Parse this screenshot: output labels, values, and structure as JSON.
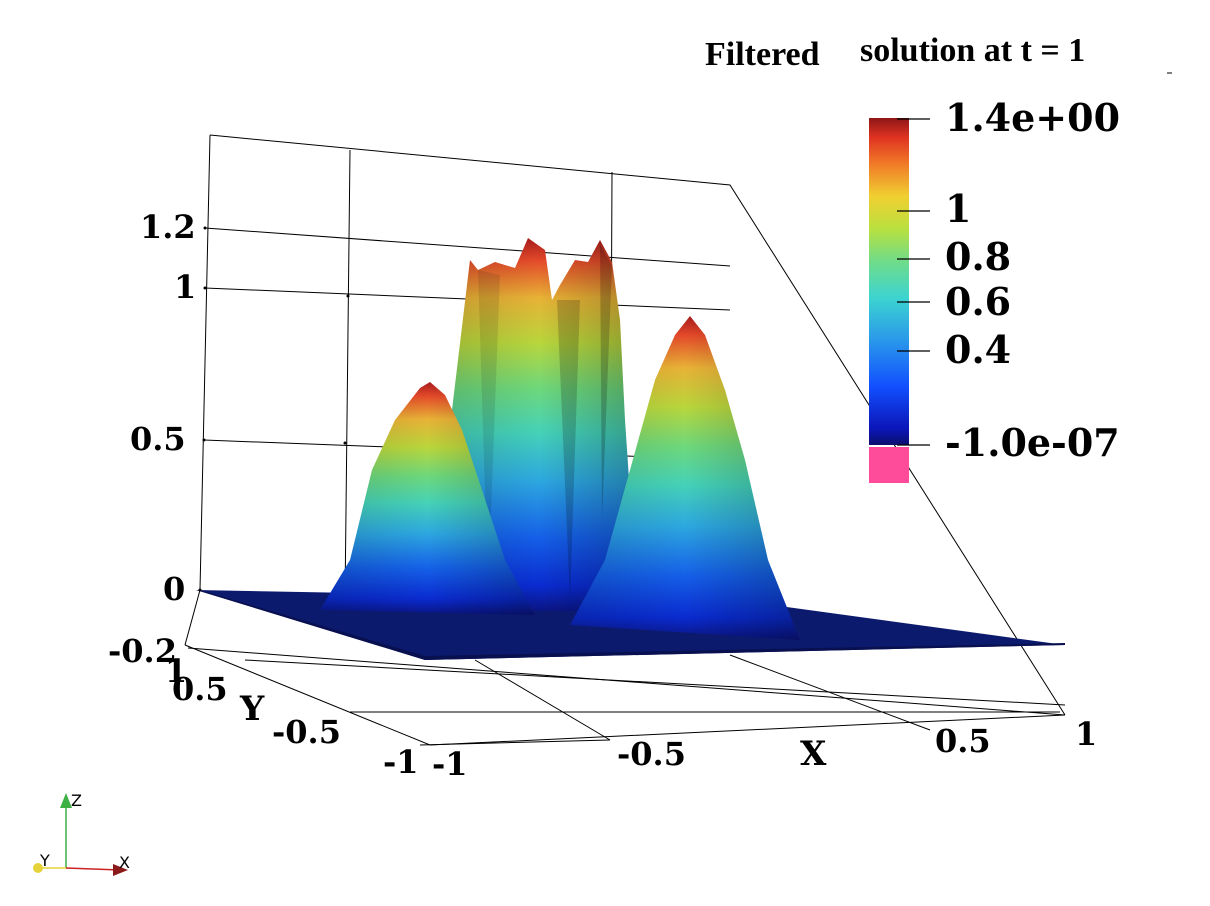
{
  "title_part1": "Filtered",
  "title_part2": "solution at t = 1",
  "chart_data": {
    "type": "surface",
    "x_axis_label": "X",
    "y_axis_label": "Y",
    "x_ticks": [
      "-1",
      "-0.5",
      "0.5",
      "1"
    ],
    "y_ticks": [
      "-1",
      "-0.5",
      "0.5",
      "1"
    ],
    "z_ticks": [
      "-0.2",
      "0",
      "0.5",
      "1",
      "1.2"
    ],
    "xlim": [
      -1,
      1
    ],
    "ylim": [
      -1,
      1
    ],
    "zlim": [
      -0.2,
      1.3
    ],
    "surface_peaks": [
      {
        "x": -0.55,
        "y": 0.0,
        "z": 0.83
      },
      {
        "x": -0.25,
        "y": 0.45,
        "z": 1.2
      },
      {
        "x": 0.05,
        "y": 0.45,
        "z": 1.2
      },
      {
        "x": 0.35,
        "y": 0.0,
        "z": 1.0
      }
    ],
    "colorbar": {
      "min_label": "-1.0e-07",
      "max_label": "1.4e+00",
      "tick_labels": [
        "1.4e+00",
        "1",
        "0.8",
        "0.6",
        "0.4",
        "-1.0e-07"
      ],
      "colormap": "rainbow",
      "below_range_color": "#ff4c9a"
    }
  },
  "orientation_axes": {
    "x": "X",
    "y": "Y",
    "z": "Z"
  }
}
